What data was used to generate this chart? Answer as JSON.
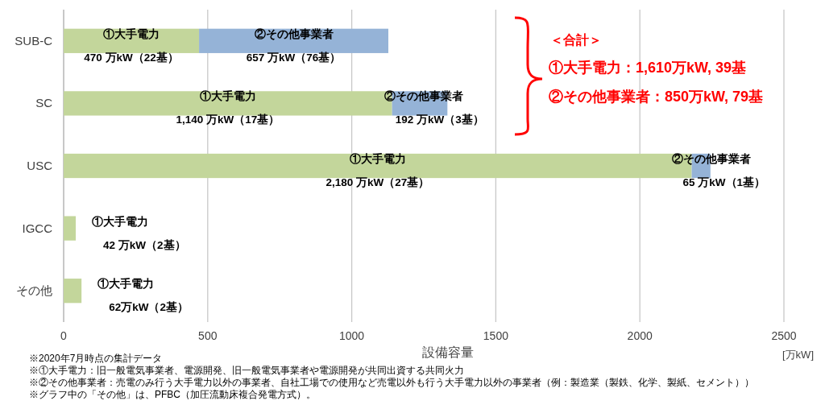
{
  "chart_data": {
    "type": "bar",
    "orientation": "horizontal",
    "stacked": true,
    "xlabel": "設備容量",
    "categories": [
      "SUB-C",
      "SC",
      "USC",
      "IGCC",
      "その他"
    ],
    "series": [
      {
        "name": "①大手電力",
        "color": "#c3d69b",
        "values": [
          470,
          1140,
          2180,
          42,
          62
        ],
        "value_labels": [
          "470 万kW（22基）",
          "1,140 万kW（17基）",
          "2,180 万kW（27基）",
          "42 万kW（2基）",
          "62万kW（2基）"
        ]
      },
      {
        "name": "②その他事業者",
        "color": "#95b3d7",
        "values": [
          657,
          192,
          65,
          null,
          null
        ],
        "value_labels": [
          "657 万kW（76基）",
          "192 万kW（3基）",
          "65 万kW（1基）",
          null,
          null
        ]
      }
    ],
    "xlim": [
      0,
      2500
    ],
    "xticks": [
      0,
      500,
      1000,
      1500,
      2000,
      2500
    ],
    "grid": "x",
    "annotations": [
      "＜合計＞",
      "①大手電力：1,610万kW, 39基",
      "②その他事業者：850万kW, 79基",
      "[万kW]",
      "※2020年7月時点の集計データ",
      "※①大手電力：旧一般電気事業者、電源開発、旧一般電気事業者や電源開発が共同出資する共同火力",
      "※②その他事業者：売電のみ行う大手電力以外の事業者、自社工場での使用など売電以外も行う大手電力以外の事業者（例：製造業（製鉄、化学、製紙、セメント））",
      "※グラフ中の「その他」は、PFBC（加圧流動床複合発電方式）。"
    ]
  }
}
